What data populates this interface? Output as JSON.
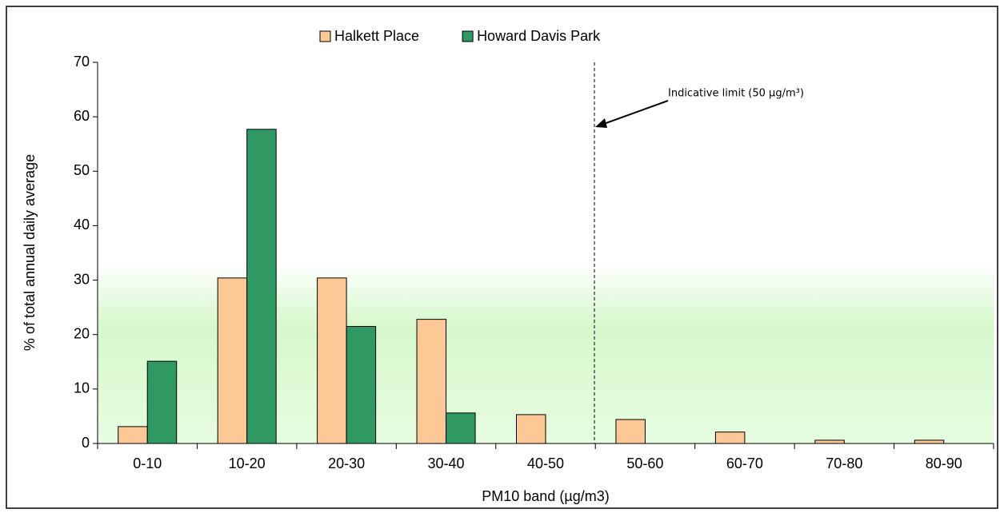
{
  "chart_data": {
    "type": "bar",
    "legend": "top",
    "y_label": "% of total annual daily average",
    "x_label": "PM10  band (µg/m3)",
    "annotation": "Indicative limit (50 µg/m³)",
    "categories": [
      "0-10",
      "10-20",
      "20-30",
      "30-40",
      "40-50",
      "50-60",
      "60-70",
      "70-80",
      "80-90"
    ],
    "series": [
      {
        "name": "Halkett Place",
        "color": "#fcc996",
        "values": [
          3.1,
          30.4,
          30.4,
          22.8,
          5.3,
          4.4,
          2.1,
          0.6,
          0.6
        ]
      },
      {
        "name": "Howard Davis Park",
        "color": "#2f9863",
        "values": [
          15.1,
          57.7,
          21.5,
          5.6,
          0,
          0,
          0,
          0,
          0
        ]
      }
    ],
    "ylim": [
      0,
      70
    ],
    "yticks": [
      0,
      10,
      20,
      30,
      40,
      50,
      60,
      70
    ]
  }
}
